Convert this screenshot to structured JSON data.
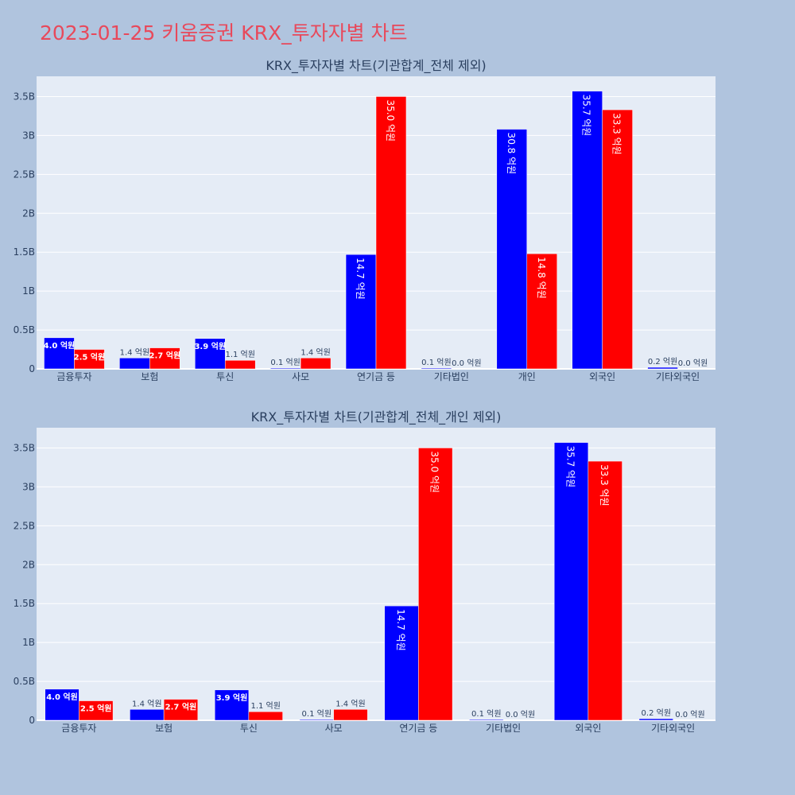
{
  "title": "2023-01-25 키움증권 KRX_투자자별 차트",
  "chart_data": [
    {
      "type": "bar",
      "title": "KRX_투자자별 차트(기관합계_전체 제외)",
      "categories": [
        "금융투자",
        "보험",
        "투신",
        "사모",
        "연기금 등",
        "기타법인",
        "개인",
        "외국인",
        "기타외국인"
      ],
      "series": [
        {
          "color": "#0000ff",
          "values": [
            400000000,
            140000000,
            390000000,
            10000000,
            1470000000,
            10000000,
            3080000000,
            3570000000,
            20000000
          ],
          "labels": [
            "4.0 억원",
            "1.4 억원",
            "3.9 억원",
            "0.1 억원",
            "14.7 억원",
            "0.1 억원",
            "30.8 억원",
            "35.7 억원",
            "0.2 억원"
          ]
        },
        {
          "color": "#ff0000",
          "values": [
            250000000,
            270000000,
            110000000,
            140000000,
            3500000000,
            0,
            1480000000,
            3330000000,
            0
          ],
          "labels": [
            "2.5 억원",
            "2.7 억원",
            "1.1 억원",
            "1.4 억원",
            "35.0 억원",
            "0.0 억원",
            "14.8 억원",
            "33.3 억원",
            "0.0 억원"
          ]
        }
      ],
      "ylim": [
        0,
        3760000000
      ],
      "yticks": [
        0,
        500000000,
        1000000000,
        1500000000,
        2000000000,
        2500000000,
        3000000000,
        3500000000
      ],
      "ytick_labels": [
        "0",
        "0.5B",
        "1B",
        "1.5B",
        "2B",
        "2.5B",
        "3B",
        "3.5B"
      ],
      "grid": true,
      "legend": "none"
    },
    {
      "type": "bar",
      "title": "KRX_투자자별 차트(기관합계_전체_개인 제외)",
      "categories": [
        "금융투자",
        "보험",
        "투신",
        "사모",
        "연기금 등",
        "기타법인",
        "외국인",
        "기타외국인"
      ],
      "series": [
        {
          "color": "#0000ff",
          "values": [
            400000000,
            140000000,
            390000000,
            10000000,
            1470000000,
            10000000,
            3570000000,
            20000000
          ],
          "labels": [
            "4.0 억원",
            "1.4 억원",
            "3.9 억원",
            "0.1 억원",
            "14.7 억원",
            "0.1 억원",
            "35.7 억원",
            "0.2 억원"
          ]
        },
        {
          "color": "#ff0000",
          "values": [
            250000000,
            270000000,
            110000000,
            140000000,
            3500000000,
            0,
            3330000000,
            0
          ],
          "labels": [
            "2.5 억원",
            "2.7 억원",
            "1.1 억원",
            "1.4 억원",
            "35.0 억원",
            "0.0 억원",
            "33.3 억원",
            "0.0 억원"
          ]
        }
      ],
      "ylim": [
        0,
        3760000000
      ],
      "yticks": [
        0,
        500000000,
        1000000000,
        1500000000,
        2000000000,
        2500000000,
        3000000000,
        3500000000
      ],
      "ytick_labels": [
        "0",
        "0.5B",
        "1B",
        "1.5B",
        "2B",
        "2.5B",
        "3B",
        "3.5B"
      ],
      "grid": true,
      "legend": "none"
    }
  ]
}
